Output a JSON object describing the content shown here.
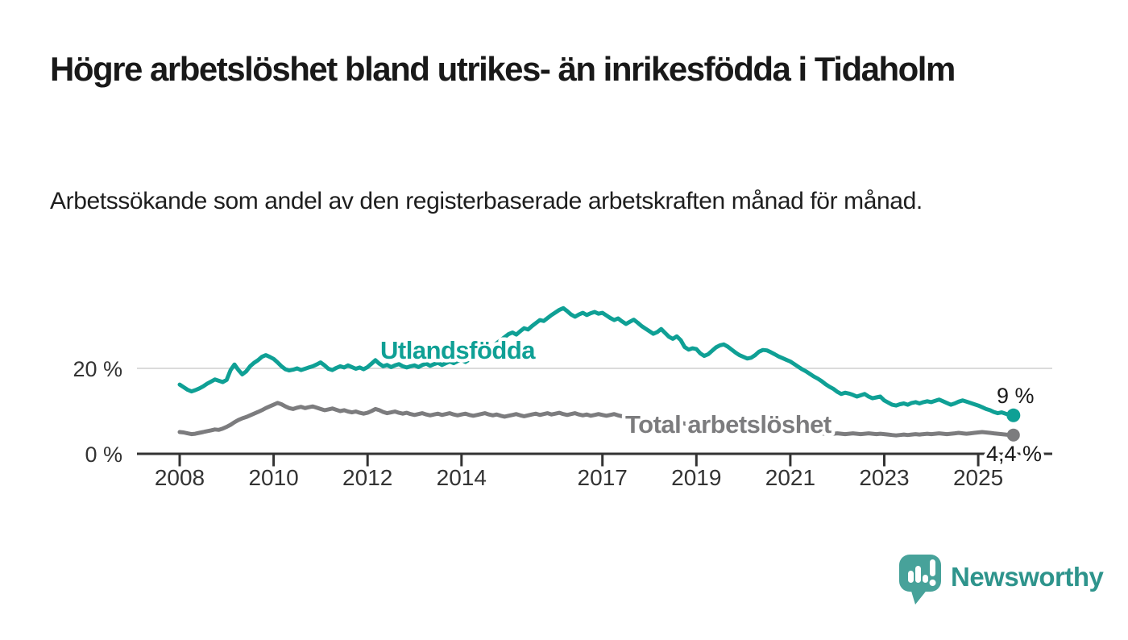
{
  "header": {
    "title": "Högre arbetslöshet bland utrikes- än inrikesfödda i Tidaholm",
    "subtitle": "Arbetssökande som andel av den registerbaserade arbetskraften månad för månad."
  },
  "branding": {
    "name": "Newsworthy",
    "icon": "speech-bubble-bar-chart-icon",
    "bubble_color": "#47a29a",
    "text_color": "#2e948c"
  },
  "colors": {
    "accent_teal": "#0fa095",
    "neutral_gray": "#7c7c7e",
    "axis": "#333333",
    "grid": "#dbdbdb"
  },
  "chart_data": {
    "type": "line",
    "title": "Högre arbetslöshet bland utrikes- än inrikesfödda i Tidaholm",
    "subtitle": "Arbetssökande som andel av den registerbaserade arbetskraften månad för månad.",
    "unit": "%",
    "x_start_year": 2008,
    "x_end": "2025-10",
    "points_per_year": 12,
    "grid": "single horizontal gridline at 20 %",
    "legend_position": "inline labels on lines",
    "ylim": [
      0,
      36
    ],
    "x_ticks": [
      {
        "label": "2008",
        "year": 2008
      },
      {
        "label": "2010",
        "year": 2010
      },
      {
        "label": "2012",
        "year": 2012
      },
      {
        "label": "2014",
        "year": 2014
      },
      {
        "label": "2017",
        "year": 2017
      },
      {
        "label": "2019",
        "year": 2019
      },
      {
        "label": "2021",
        "year": 2021
      },
      {
        "label": "2023",
        "year": 2023
      },
      {
        "label": "2025",
        "year": 2025
      }
    ],
    "y_ticks": [
      {
        "label": "20 %",
        "value": 20
      },
      {
        "label": "0 %",
        "value": 0
      }
    ],
    "series": [
      {
        "name": "Utlandsfödda",
        "color": "#0fa095",
        "end_label": "9 %",
        "end_value": 9.0,
        "values": [
          16.2,
          15.6,
          15.0,
          14.6,
          14.9,
          15.3,
          15.8,
          16.4,
          16.9,
          17.4,
          17.1,
          16.8,
          17.3,
          19.6,
          20.9,
          19.6,
          18.6,
          19.3,
          20.5,
          21.3,
          21.9,
          22.7,
          23.1,
          22.7,
          22.2,
          21.4,
          20.5,
          19.8,
          19.5,
          19.7,
          20.0,
          19.6,
          19.9,
          20.2,
          20.5,
          20.9,
          21.4,
          20.7,
          19.9,
          19.6,
          20.1,
          20.5,
          20.2,
          20.7,
          20.3,
          19.9,
          20.2,
          19.8,
          20.3,
          21.1,
          21.9,
          21.1,
          20.5,
          20.8,
          20.3,
          20.7,
          21.0,
          20.5,
          20.2,
          20.5,
          20.7,
          20.3,
          20.8,
          21.1,
          20.6,
          21.0,
          21.3,
          20.8,
          21.2,
          21.6,
          21.2,
          21.7,
          22.0,
          21.5,
          22.1,
          22.7,
          22.3,
          22.9,
          23.6,
          24.3,
          25.1,
          25.9,
          26.6,
          27.3,
          28.0,
          28.4,
          27.9,
          28.7,
          29.4,
          29.1,
          29.9,
          30.6,
          31.3,
          31.1,
          31.8,
          32.5,
          33.1,
          33.7,
          34.1,
          33.4,
          32.6,
          32.1,
          32.6,
          33.0,
          32.5,
          32.9,
          33.2,
          32.8,
          33.0,
          32.4,
          31.8,
          31.3,
          31.7,
          31.0,
          30.4,
          30.9,
          31.4,
          30.7,
          29.9,
          29.3,
          28.7,
          28.1,
          28.5,
          29.2,
          28.3,
          27.4,
          26.9,
          27.5,
          26.6,
          25.0,
          24.4,
          24.7,
          24.5,
          23.5,
          22.9,
          23.3,
          24.1,
          24.9,
          25.4,
          25.6,
          25.1,
          24.4,
          23.7,
          23.1,
          22.7,
          22.3,
          22.5,
          23.1,
          23.9,
          24.3,
          24.2,
          23.8,
          23.3,
          22.8,
          22.4,
          22.0,
          21.6,
          21.0,
          20.4,
          19.8,
          19.3,
          18.7,
          18.1,
          17.6,
          17.0,
          16.3,
          15.7,
          15.2,
          14.5,
          14.0,
          14.3,
          14.1,
          13.8,
          13.4,
          13.7,
          14.0,
          13.4,
          13.0,
          13.2,
          13.4,
          12.5,
          12.0,
          11.5,
          11.3,
          11.6,
          11.8,
          11.5,
          11.9,
          12.1,
          11.8,
          12.1,
          12.3,
          12.1,
          12.4,
          12.7,
          12.3,
          11.9,
          11.5,
          11.8,
          12.2,
          12.5,
          12.2,
          11.9,
          11.6,
          11.3,
          10.9,
          10.5,
          10.2,
          9.8,
          9.5,
          9.7,
          9.4,
          9.1,
          9.0
        ]
      },
      {
        "name": "Total arbetslöshet",
        "color": "#7c7c7e",
        "end_label": "4,4 %",
        "end_value": 4.4,
        "values": [
          5.1,
          5.0,
          4.8,
          4.6,
          4.7,
          4.9,
          5.1,
          5.3,
          5.5,
          5.7,
          5.6,
          5.9,
          6.3,
          6.8,
          7.4,
          7.9,
          8.3,
          8.6,
          9.0,
          9.4,
          9.8,
          10.2,
          10.7,
          11.1,
          11.5,
          11.9,
          11.6,
          11.1,
          10.7,
          10.5,
          10.8,
          11.0,
          10.7,
          10.9,
          11.1,
          10.8,
          10.5,
          10.2,
          10.4,
          10.6,
          10.3,
          10.0,
          10.2,
          9.9,
          9.7,
          9.9,
          9.6,
          9.4,
          9.6,
          10.0,
          10.5,
          10.2,
          9.8,
          9.5,
          9.7,
          9.9,
          9.6,
          9.4,
          9.6,
          9.3,
          9.1,
          9.3,
          9.5,
          9.2,
          9.0,
          9.2,
          9.4,
          9.1,
          9.3,
          9.5,
          9.2,
          9.0,
          9.2,
          9.4,
          9.1,
          8.9,
          9.1,
          9.3,
          9.5,
          9.2,
          9.0,
          9.2,
          8.9,
          8.7,
          8.9,
          9.1,
          9.3,
          9.0,
          8.8,
          9.0,
          9.2,
          9.4,
          9.1,
          9.3,
          9.5,
          9.2,
          9.4,
          9.6,
          9.3,
          9.1,
          9.3,
          9.5,
          9.2,
          9.0,
          9.2,
          8.9,
          9.1,
          9.3,
          9.1,
          8.9,
          9.1,
          9.3,
          9.0,
          8.8,
          8.6,
          8.7,
          8.5,
          8.3,
          8.4,
          8.2,
          8.0,
          7.8,
          7.9,
          7.7,
          7.5,
          7.6,
          7.4,
          7.2,
          7.3,
          7.1,
          6.9,
          7.0,
          6.8,
          6.6,
          6.7,
          6.5,
          6.6,
          6.8,
          6.9,
          6.7,
          6.5,
          6.4,
          6.2,
          6.3,
          6.1,
          6.0,
          6.2,
          6.6,
          6.9,
          7.1,
          7.0,
          6.8,
          6.6,
          6.4,
          6.2,
          6.0,
          5.9,
          5.7,
          5.6,
          5.4,
          5.3,
          5.1,
          5.0,
          4.9,
          4.8,
          4.7,
          4.6,
          4.7,
          4.8,
          4.7,
          4.6,
          4.7,
          4.8,
          4.7,
          4.6,
          4.7,
          4.8,
          4.7,
          4.6,
          4.7,
          4.6,
          4.5,
          4.4,
          4.3,
          4.4,
          4.5,
          4.4,
          4.5,
          4.6,
          4.5,
          4.6,
          4.7,
          4.6,
          4.7,
          4.8,
          4.7,
          4.6,
          4.7,
          4.8,
          4.9,
          4.8,
          4.7,
          4.8,
          4.9,
          5.0,
          5.1,
          5.0,
          4.9,
          4.8,
          4.7,
          4.6,
          4.5,
          4.4,
          4.4
        ]
      }
    ]
  }
}
